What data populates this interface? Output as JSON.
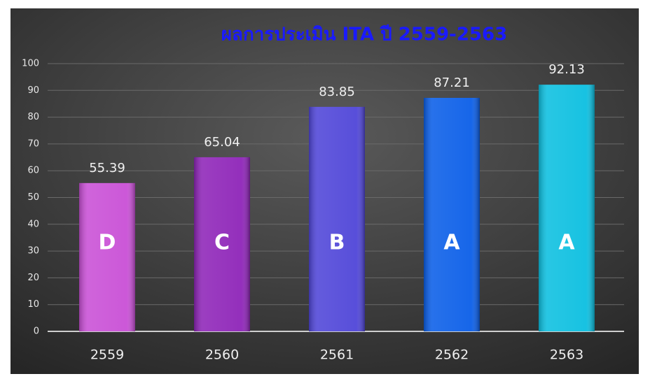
{
  "chart_data": {
    "type": "bar",
    "title": "ผลการประเมิน ITA ปี 2559-2563",
    "categories": [
      "2559",
      "2560",
      "2561",
      "2562",
      "2563"
    ],
    "values": [
      55.39,
      65.04,
      83.85,
      87.21,
      92.13
    ],
    "grades": [
      "D",
      "C",
      "B",
      "A",
      "A"
    ],
    "colors": [
      "#c94fd6",
      "#8e24b8",
      "#4f45d8",
      "#0a5ee8",
      "#0bbfe0"
    ],
    "ylim": [
      0,
      100
    ],
    "yticks": [
      0,
      10,
      20,
      30,
      40,
      50,
      60,
      70,
      80,
      90,
      100
    ],
    "grid": true
  }
}
